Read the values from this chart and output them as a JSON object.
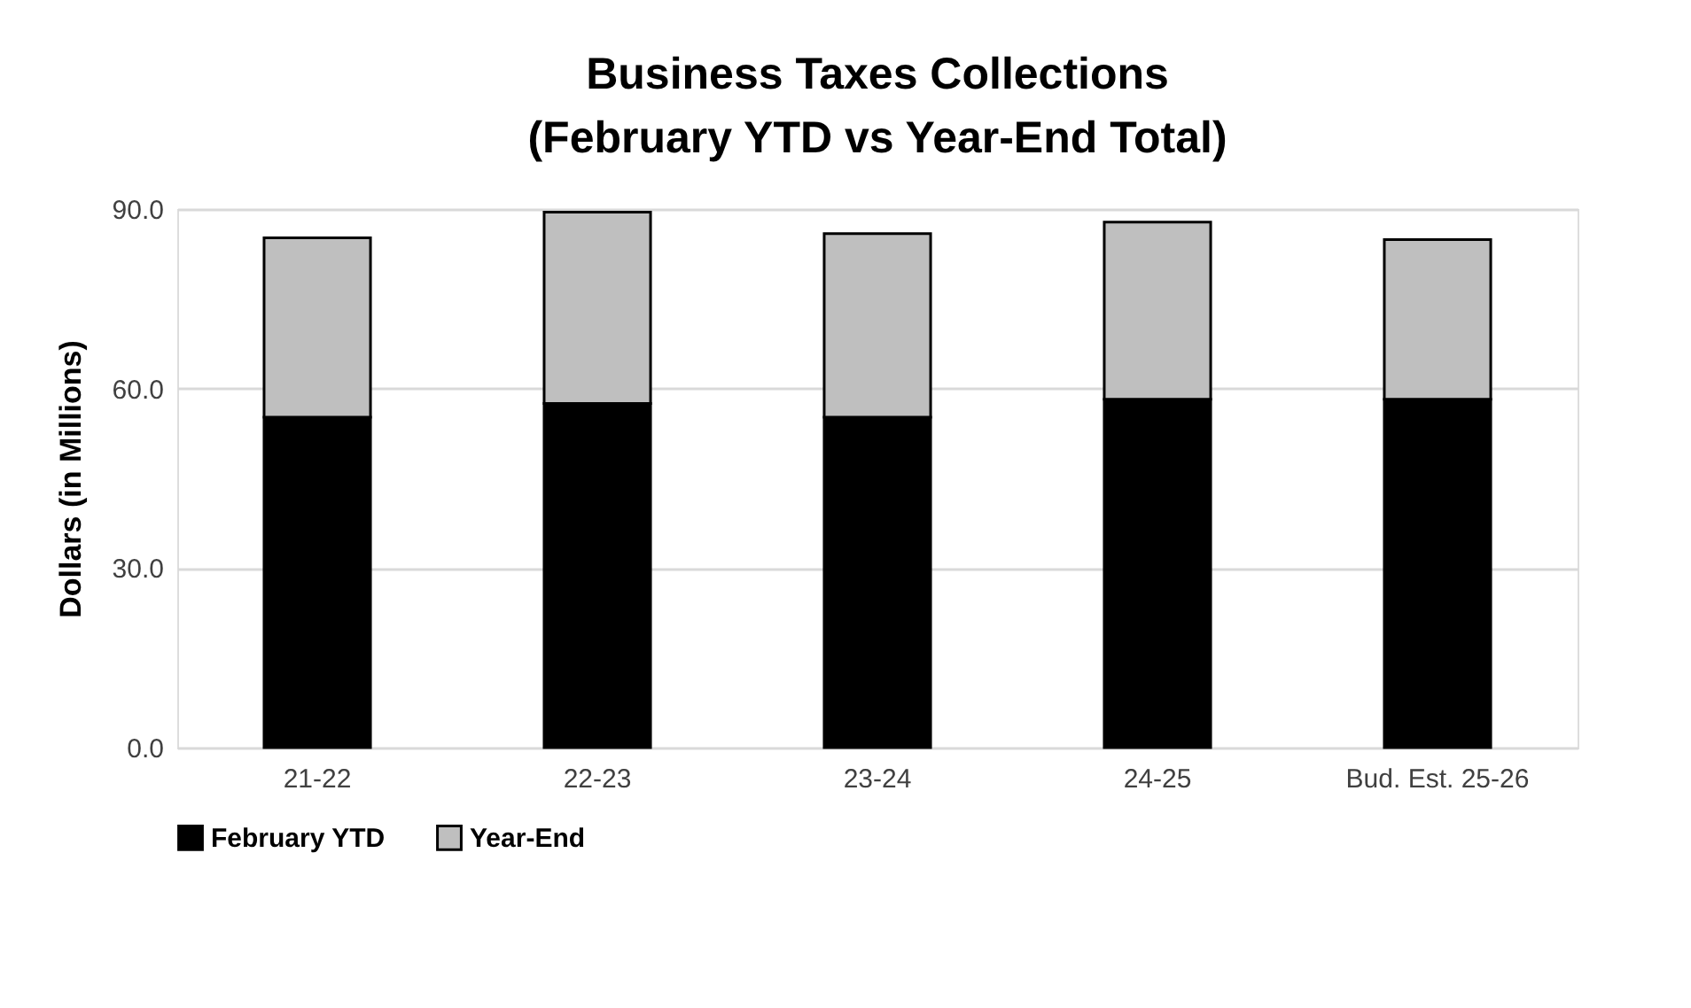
{
  "chart_data": {
    "type": "bar",
    "title": [
      "Business Taxes Collections",
      "(February YTD vs Year-End Total)"
    ],
    "ylabel": "Dollars (in Millions)",
    "categories": [
      "21-22",
      "22-23",
      "23-24",
      "24-25",
      "Bud. Est. 25-26"
    ],
    "stacked": true,
    "series": [
      {
        "name": "February YTD",
        "color": "#000000",
        "values": [
          55.2,
          57.5,
          55.2,
          58.2,
          58.2
        ]
      },
      {
        "name": "Year-End",
        "color": "#bfbfbf",
        "values": [
          30.0,
          32.0,
          30.7,
          29.6,
          26.7
        ]
      }
    ],
    "ylim": [
      0,
      90
    ],
    "yticks": [
      {
        "value": 0,
        "label": "0.0"
      },
      {
        "value": 30,
        "label": "30.0"
      },
      {
        "value": 60,
        "label": "60.0"
      },
      {
        "value": 90,
        "label": "90.0"
      }
    ],
    "grid": "y",
    "legend": "bottom"
  }
}
